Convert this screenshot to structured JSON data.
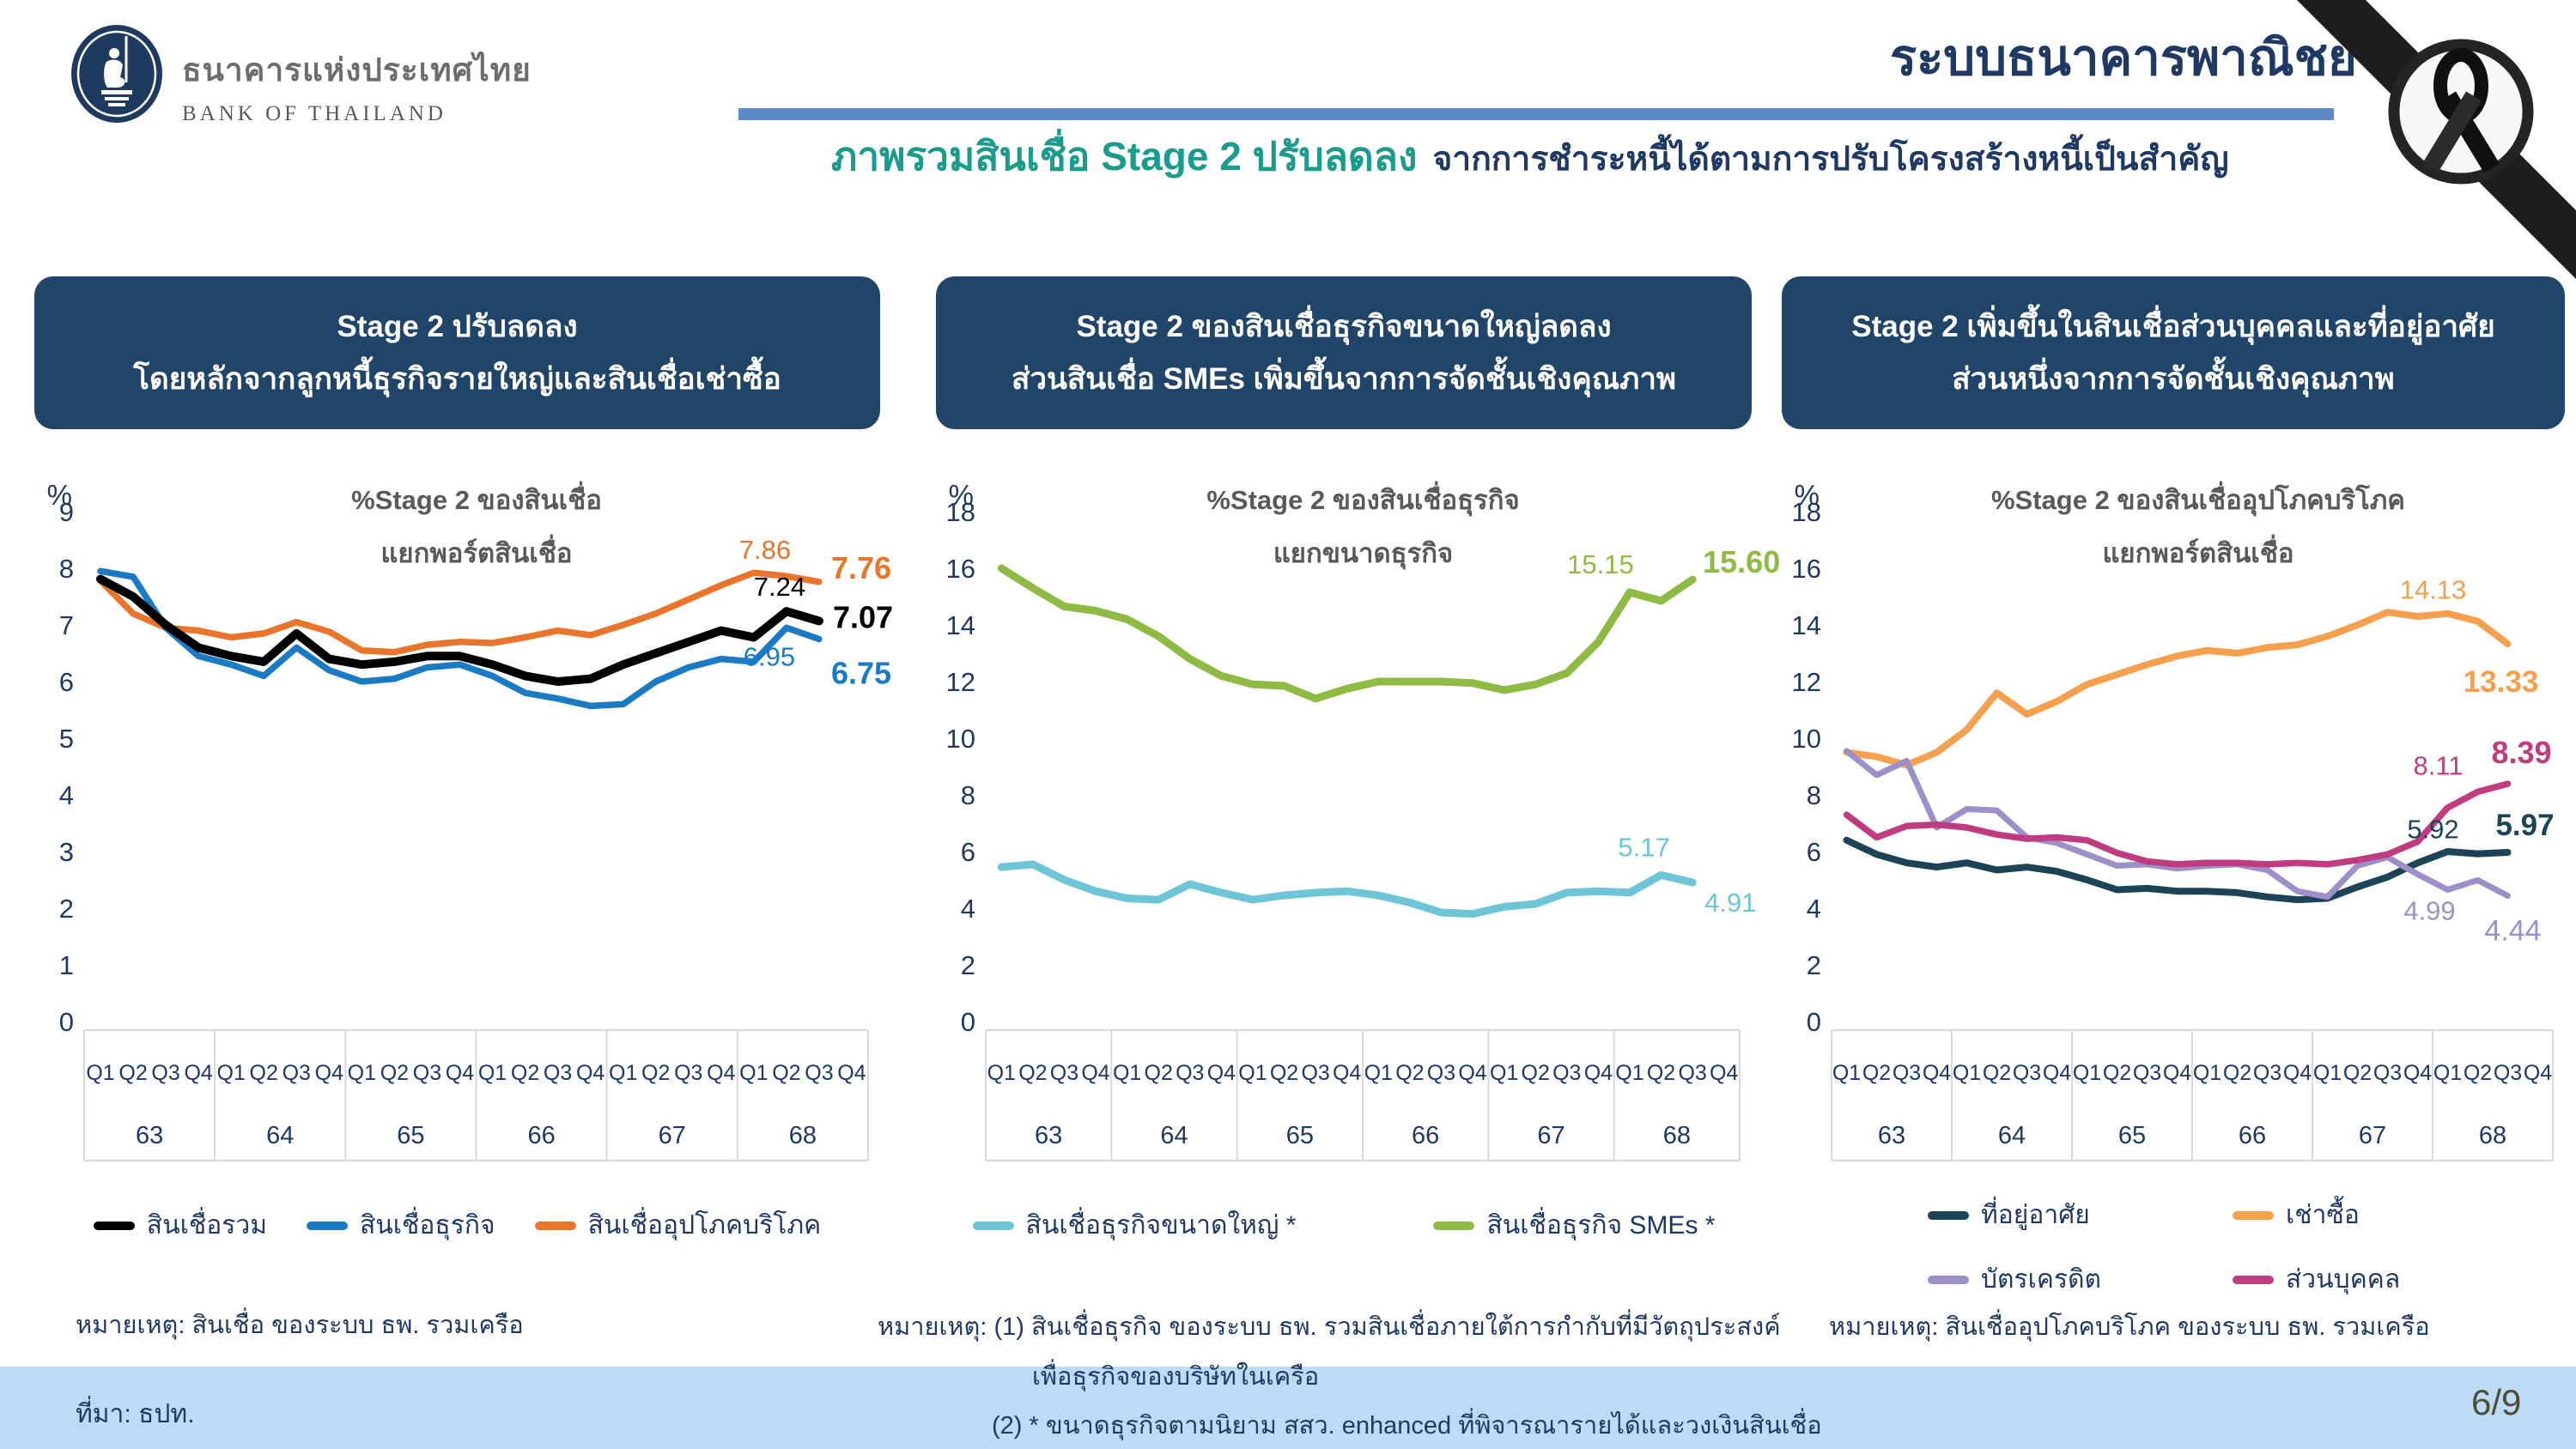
{
  "header": {
    "logo_title_th": "ธนาคารแห่งประเทศไทย",
    "logo_title_en": "BANK OF THAILAND",
    "page_title": "ระบบธนาคารพาณิชย์",
    "subtitle_highlight": "ภาพรวมสินเชื่อ Stage 2 ปรับลดลง",
    "subtitle_rest": "จากการชำระหนี้ได้ตามการปรับโครงสร้างหนี้เป็นสำคัญ"
  },
  "colors": {
    "accent_bar": "#5B8AC6",
    "title_navy": "#1F3864",
    "subtitle_teal": "#199C8B",
    "panel_bg": "#214469",
    "chart_title_gray": "#595959",
    "axis_border": "#D9D9D9",
    "footer_band": "#BDDBF5",
    "page_number": "#4E4D37"
  },
  "footer": {
    "source": "ที่มา: ธปท.",
    "page_number": "6/9"
  },
  "chart_data": [
    {
      "type": "line",
      "panel_header": [
        "Stage 2 ปรับลดลง",
        "โดยหลักจากลูกหนี้ธุรกิจรายใหญ่และสินเชื่อเช่าซื้อ"
      ],
      "title": [
        "%Stage 2 ของสินเชื่อ",
        "แยกพอร์ตสินเชื่อ"
      ],
      "unit": "%",
      "ylim": [
        0,
        9
      ],
      "ytick_step": 1,
      "years": [
        "63",
        "64",
        "65",
        "66",
        "67",
        "68"
      ],
      "quarters": [
        "Q1",
        "Q2",
        "Q3",
        "Q4"
      ],
      "x_note": "quarterly, Q1 2563 - Q3 2568",
      "draw_order": [
        2,
        1,
        0
      ],
      "note_lines": [
        "หมายเหตุ: สินเชื่อ ของระบบ ธพ. รวมเครือ"
      ],
      "series": [
        {
          "name": "สินเชื่อรวม",
          "color": "#000000",
          "width": 10,
          "values": [
            7.81,
            7.5,
            7.0,
            6.6,
            6.45,
            6.35,
            6.85,
            6.4,
            6.3,
            6.35,
            6.45,
            6.45,
            6.3,
            6.1,
            6.0,
            6.05,
            6.3,
            6.5,
            6.7,
            6.9,
            6.78,
            7.24,
            7.07
          ],
          "labels": [
            {
              "i": 21,
              "text": "7.24",
              "anchor": "middle",
              "dx": -8,
              "dy": -18
            },
            {
              "i": 22,
              "text": "7.07",
              "anchor": "start",
              "dx": 16,
              "dy": 8,
              "bold": true,
              "size": 36
            }
          ]
        },
        {
          "name": "สินเชื่อธุรกิจ",
          "color": "#1B7AC4",
          "width": 7.5,
          "values": [
            7.95,
            7.85,
            6.95,
            6.45,
            6.3,
            6.1,
            6.6,
            6.2,
            6.0,
            6.05,
            6.25,
            6.3,
            6.1,
            5.8,
            5.7,
            5.57,
            5.6,
            6.0,
            6.25,
            6.4,
            6.35,
            6.95,
            6.75
          ],
          "labels": [
            {
              "i": 21,
              "text": "6.95",
              "anchor": "middle",
              "dx": -20,
              "dy": 44
            },
            {
              "i": 22,
              "text": "6.75",
              "anchor": "start",
              "dx": 14,
              "dy": 52,
              "bold": true,
              "size": 36
            }
          ]
        },
        {
          "name": "สินเชื่ออุปโภคบริโภค",
          "color": "#E8752B",
          "width": 7.5,
          "values": [
            7.78,
            7.2,
            6.95,
            6.9,
            6.78,
            6.85,
            7.05,
            6.88,
            6.55,
            6.52,
            6.65,
            6.7,
            6.68,
            6.78,
            6.9,
            6.82,
            7.0,
            7.2,
            7.45,
            7.7,
            7.92,
            7.86,
            7.76
          ],
          "labels": [
            {
              "i": 21,
              "text": "7.86",
              "anchor": "middle",
              "dx": -25,
              "dy": -20
            },
            {
              "i": 22,
              "text": "7.76",
              "anchor": "start",
              "dx": 14,
              "dy": -4,
              "bold": true,
              "size": 36
            }
          ]
        }
      ]
    },
    {
      "type": "line",
      "panel_header": [
        "Stage 2 ของสินเชื่อธุรกิจขนาดใหญ่ลดลง",
        "ส่วนสินเชื่อ SMEs เพิ่มขึ้นจากการจัดชั้นเชิงคุณภาพ"
      ],
      "title": [
        "%Stage 2 ของสินเชื่อธุรกิจ",
        "แยกขนาดธุรกิจ"
      ],
      "unit": "%",
      "ylim": [
        0,
        18
      ],
      "ytick_step": 2,
      "years": [
        "63",
        "64",
        "65",
        "66",
        "67",
        "68"
      ],
      "quarters": [
        "Q1",
        "Q2",
        "Q3",
        "Q4"
      ],
      "x_note": "quarterly, Q1 2563 - Q3 2568",
      "draw_order": [
        0,
        1
      ],
      "note_lines": [
        "หมายเหตุ: (1) สินเชื่อธุรกิจ ของระบบ ธพ. รวมสินเชื่อภายใต้การกำกับที่มีวัตถุประสงค์",
        "เพื่อธุรกิจของบริษัทในเครือ",
        "(2) * ขนาดธุรกิจตามนิยาม สสว. enhanced ที่พิจารณารายได้และวงเงินสินเชื่อ"
      ],
      "series": [
        {
          "name": "สินเชื่อธุรกิจขนาดใหญ่ *",
          "color": "#6FC5D8",
          "width": 9,
          "values": [
            5.45,
            5.55,
            5.0,
            4.6,
            4.35,
            4.3,
            4.85,
            4.55,
            4.3,
            4.45,
            4.55,
            4.6,
            4.45,
            4.2,
            3.85,
            3.8,
            4.05,
            4.15,
            4.55,
            4.6,
            4.55,
            5.17,
            4.91
          ],
          "labels": [
            {
              "i": 21,
              "text": "5.17",
              "anchor": "middle",
              "dx": -20,
              "dy": -22
            },
            {
              "i": 22,
              "text": "4.91",
              "anchor": "start",
              "dx": 14,
              "dy": 34
            }
          ]
        },
        {
          "name": "สินเชื่อธุรกิจ SMEs *",
          "color": "#8FBA43",
          "width": 9,
          "values": [
            16.0,
            15.3,
            14.65,
            14.5,
            14.2,
            13.6,
            12.8,
            12.2,
            11.9,
            11.85,
            11.4,
            11.75,
            12.0,
            12.0,
            12.0,
            11.95,
            11.7,
            11.9,
            12.3,
            13.4,
            15.15,
            14.85,
            15.6
          ],
          "labels": [
            {
              "i": 20,
              "text": "15.15",
              "anchor": "middle",
              "dx": -34,
              "dy": -22
            },
            {
              "i": 22,
              "text": "15.60",
              "anchor": "start",
              "dx": 12,
              "dy": -8,
              "bold": true,
              "size": 36
            }
          ]
        }
      ]
    },
    {
      "type": "line",
      "panel_header": [
        "Stage 2 เพิ่มขึ้นในสินเชื่อส่วนบุคคลและที่อยู่อาศัย",
        "ส่วนหนึ่งจากการจัดชั้นเชิงคุณภาพ"
      ],
      "title": [
        "%Stage 2 ของสินเชื่ออุปโภคบริโภค",
        "แยกพอร์ตสินเชื่อ"
      ],
      "unit": "%",
      "ylim": [
        0,
        18
      ],
      "ytick_step": 2,
      "years": [
        "63",
        "64",
        "65",
        "66",
        "67",
        "68"
      ],
      "quarters": [
        "Q1",
        "Q2",
        "Q3",
        "Q4"
      ],
      "x_note": "quarterly, Q1 2563 - Q3 2568",
      "draw_order": [
        1,
        0,
        2,
        3
      ],
      "note_lines": [
        "หมายเหตุ: สินเชื่ออุปโภคบริโภค ของระบบ ธพ. รวมเครือ"
      ],
      "series": [
        {
          "name": "ที่อยู่อาศัย",
          "color": "#1C4356",
          "width": 8,
          "values": [
            6.4,
            5.9,
            5.6,
            5.45,
            5.6,
            5.35,
            5.45,
            5.3,
            5.0,
            4.65,
            4.7,
            4.6,
            4.6,
            4.55,
            4.4,
            4.3,
            4.35,
            4.75,
            5.1,
            5.6,
            6.0,
            5.92,
            5.97
          ],
          "labels": [
            {
              "i": 21,
              "text": "5.92",
              "anchor": "middle",
              "dx": -52,
              "dy": -18
            },
            {
              "i": 22,
              "text": "5.97",
              "anchor": "middle",
              "dx": 20,
              "dy": -20,
              "bold": true,
              "size": 35
            }
          ]
        },
        {
          "name": "เช่าซื้อ",
          "color": "#F5A04F",
          "width": 8,
          "values": [
            9.5,
            9.35,
            9.05,
            9.5,
            10.3,
            11.6,
            10.85,
            11.3,
            11.9,
            12.25,
            12.6,
            12.9,
            13.1,
            13.0,
            13.2,
            13.3,
            13.6,
            14.0,
            14.45,
            14.3,
            14.4,
            14.13,
            13.33
          ],
          "labels": [
            {
              "i": 21,
              "text": "14.13",
              "anchor": "middle",
              "dx": -52,
              "dy": -26
            },
            {
              "i": 22,
              "text": "13.33",
              "anchor": "middle",
              "dx": -8,
              "dy": 56,
              "bold": true,
              "size": 35
            }
          ]
        },
        {
          "name": "บัตรเครดิต",
          "color": "#9D90C8",
          "width": 7,
          "values": [
            9.55,
            8.7,
            9.2,
            6.85,
            7.5,
            7.45,
            6.5,
            6.3,
            5.9,
            5.5,
            5.55,
            5.4,
            5.5,
            5.55,
            5.35,
            4.6,
            4.4,
            5.5,
            5.8,
            5.2,
            4.65,
            4.99,
            4.44
          ],
          "labels": [
            {
              "i": 21,
              "text": "4.99",
              "anchor": "middle",
              "dx": -56,
              "dy": 46
            },
            {
              "i": 22,
              "text": "4.44",
              "anchor": "middle",
              "dx": 6,
              "dy": 52,
              "size": 34
            }
          ]
        },
        {
          "name": "ส่วนบุคคล",
          "color": "#C03C80",
          "width": 7.5,
          "values": [
            7.3,
            6.5,
            6.9,
            6.95,
            6.85,
            6.6,
            6.45,
            6.5,
            6.4,
            5.95,
            5.65,
            5.55,
            5.6,
            5.6,
            5.55,
            5.6,
            5.55,
            5.7,
            5.9,
            6.35,
            7.55,
            8.11,
            8.39
          ],
          "labels": [
            {
              "i": 21,
              "text": "8.11",
              "anchor": "middle",
              "dx": -46,
              "dy": -20
            },
            {
              "i": 22,
              "text": "8.39",
              "anchor": "middle",
              "dx": 16,
              "dy": -24,
              "bold": true,
              "size": 36
            }
          ]
        }
      ]
    }
  ]
}
